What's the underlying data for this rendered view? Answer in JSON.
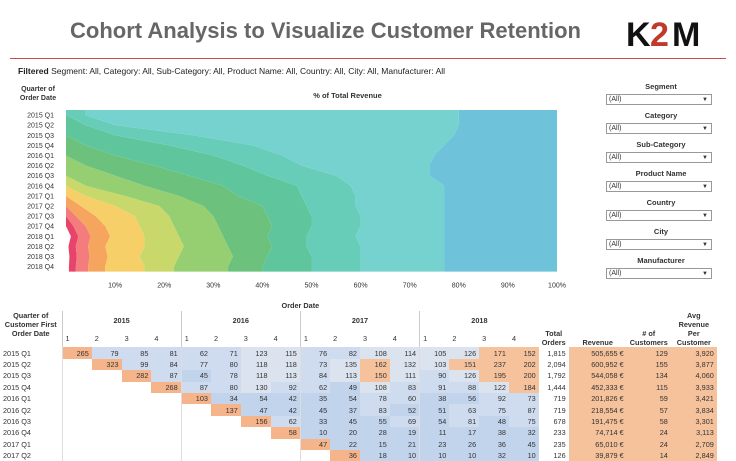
{
  "header": {
    "title": "Cohort Analysis to Visualize Customer Retention",
    "logo_text": "K2M",
    "logo_color": "#111111",
    "accent_color": "#c0392b"
  },
  "filters": {
    "prefix": "Filtered",
    "text": " Segment: All, Category: All, Sub-Category: All, Product Name: All, Country: All, City: All, Manufacturer: All"
  },
  "chart_data": {
    "type": "area",
    "title": "% of Total Revenue",
    "ylabel": "Quarter of Order Date",
    "categories": [
      "2015 Q1",
      "2015 Q2",
      "2015 Q3",
      "2015 Q4",
      "2016 Q1",
      "2016 Q2",
      "2016 Q3",
      "2016 Q4",
      "2017 Q1",
      "2017 Q2",
      "2017 Q3",
      "2017 Q4",
      "2018 Q1",
      "2018 Q2",
      "2018 Q3",
      "2018 Q4"
    ],
    "xticks": [
      "10%",
      "20%",
      "30%",
      "40%",
      "50%",
      "60%",
      "70%",
      "80%",
      "90%",
      "100%"
    ],
    "xlim": [
      0,
      100
    ],
    "grid": false,
    "series_colors": [
      "#e7436b",
      "#f47c7c",
      "#f6a55f",
      "#f7cf68",
      "#c9d86a",
      "#95cf72",
      "#6cc27c",
      "#5fc59c",
      "#67cdb9",
      "#76d2cf",
      "#6ec3da"
    ],
    "boundaries": [
      [
        0,
        0,
        0,
        0,
        0,
        0,
        0,
        0,
        0,
        0,
        0,
        0,
        1,
        0.5,
        0.7,
        0.6
      ],
      [
        0,
        0,
        0,
        0,
        0,
        0,
        0,
        0,
        0,
        0,
        0,
        1.5,
        2.5,
        2,
        2.2,
        2
      ],
      [
        0,
        0,
        0,
        0,
        0,
        0,
        0,
        0,
        0,
        0,
        2,
        4,
        5,
        4.5,
        4.8,
        4.5
      ],
      [
        0,
        0,
        0,
        0,
        0,
        0,
        0,
        0,
        0,
        3,
        6,
        8,
        9,
        8,
        8.5,
        8
      ],
      [
        0,
        0,
        0,
        0,
        0,
        0,
        0,
        0,
        4,
        10,
        14,
        15,
        16,
        16,
        15,
        16
      ],
      [
        0,
        0,
        0,
        0,
        0,
        0,
        0,
        4,
        12,
        19,
        21,
        22,
        23,
        24,
        23,
        22
      ],
      [
        0,
        0,
        0,
        0,
        0,
        4,
        10,
        16,
        23,
        28,
        30,
        31,
        32,
        33,
        34,
        33
      ],
      [
        0,
        0,
        0,
        4,
        10,
        18,
        25,
        32,
        35,
        40,
        41,
        42,
        41,
        42,
        41,
        40
      ],
      [
        0,
        4,
        10,
        21,
        30,
        36,
        41,
        47,
        48,
        49,
        50,
        50,
        49,
        49,
        50,
        50
      ],
      [
        4,
        10,
        26,
        38,
        44,
        48,
        55,
        58,
        59,
        59,
        60,
        60,
        59,
        60,
        60,
        60
      ],
      [
        80,
        80,
        79,
        77,
        75,
        74,
        74,
        77,
        77,
        77,
        77,
        77,
        77,
        77,
        77,
        77
      ],
      [
        100,
        100,
        100,
        100,
        100,
        100,
        100,
        100,
        100,
        100,
        100,
        100,
        100,
        100,
        100,
        100
      ]
    ],
    "boundaries_note_units": "cumulative percent of total revenue per quarter"
  },
  "controls": [
    {
      "label": "Segment",
      "value": "(All)"
    },
    {
      "label": "Category",
      "value": "(All)"
    },
    {
      "label": "Sub-Category",
      "value": "(All)"
    },
    {
      "label": "Product Name",
      "value": "(All)"
    },
    {
      "label": "Country",
      "value": "(All)"
    },
    {
      "label": "City",
      "value": "(All)"
    },
    {
      "label": "Manufacturer",
      "value": "(All)"
    }
  ],
  "table": {
    "order_date_header": "Order Date",
    "cohort_header": "Quarter of Customer First Order Date",
    "years": [
      "2015",
      "2016",
      "2017",
      "2018"
    ],
    "quarters": [
      "1",
      "2",
      "3",
      "4"
    ],
    "extra_headers": [
      "Total Orders",
      "Revenue",
      "# of Customers",
      "Avg Revenue Per Customer"
    ],
    "rows": [
      {
        "label": "2015 Q1",
        "cells": [
          "265",
          "79",
          "85",
          "81",
          "62",
          "71",
          "123",
          "115",
          "76",
          "82",
          "108",
          "114",
          "105",
          "126",
          "171",
          "152"
        ],
        "total": "1,815",
        "revenue": "505,655 €",
        "customers": "129",
        "avg": "3,920"
      },
      {
        "label": "2015 Q2",
        "cells": [
          "",
          "323",
          "99",
          "84",
          "77",
          "80",
          "118",
          "118",
          "73",
          "135",
          "162",
          "132",
          "103",
          "151",
          "237",
          "202"
        ],
        "total": "2,094",
        "revenue": "600,952 €",
        "customers": "155",
        "avg": "3,877"
      },
      {
        "label": "2015 Q3",
        "cells": [
          "",
          "",
          "282",
          "87",
          "45",
          "78",
          "118",
          "113",
          "84",
          "113",
          "150",
          "111",
          "90",
          "126",
          "195",
          "200"
        ],
        "total": "1,792",
        "revenue": "544,058 €",
        "customers": "134",
        "avg": "4,060"
      },
      {
        "label": "2015 Q4",
        "cells": [
          "",
          "",
          "",
          "268",
          "87",
          "80",
          "130",
          "92",
          "62",
          "49",
          "108",
          "83",
          "91",
          "88",
          "122",
          "184"
        ],
        "total": "1,444",
        "revenue": "452,333 €",
        "customers": "115",
        "avg": "3,933"
      },
      {
        "label": "2016 Q1",
        "cells": [
          "",
          "",
          "",
          "",
          "103",
          "34",
          "54",
          "42",
          "35",
          "54",
          "78",
          "60",
          "38",
          "56",
          "92",
          "73"
        ],
        "total": "719",
        "revenue": "201,826 €",
        "customers": "59",
        "avg": "3,421"
      },
      {
        "label": "2016 Q2",
        "cells": [
          "",
          "",
          "",
          "",
          "",
          "137",
          "47",
          "42",
          "45",
          "37",
          "83",
          "52",
          "51",
          "63",
          "75",
          "87"
        ],
        "total": "719",
        "revenue": "218,554 €",
        "customers": "57",
        "avg": "3,834"
      },
      {
        "label": "2016 Q3",
        "cells": [
          "",
          "",
          "",
          "",
          "",
          "",
          "156",
          "62",
          "33",
          "45",
          "55",
          "69",
          "54",
          "81",
          "48",
          "75"
        ],
        "total": "678",
        "revenue": "191,475 €",
        "customers": "58",
        "avg": "3,301"
      },
      {
        "label": "2016 Q4",
        "cells": [
          "",
          "",
          "",
          "",
          "",
          "",
          "",
          "58",
          "10",
          "20",
          "28",
          "19",
          "11",
          "17",
          "38",
          "32"
        ],
        "total": "233",
        "revenue": "74,714 €",
        "customers": "24",
        "avg": "3,113"
      },
      {
        "label": "2017 Q1",
        "cells": [
          "",
          "",
          "",
          "",
          "",
          "",
          "",
          "",
          "47",
          "22",
          "15",
          "21",
          "23",
          "26",
          "36",
          "45"
        ],
        "total": "235",
        "revenue": "65,010 €",
        "customers": "24",
        "avg": "2,709"
      },
      {
        "label": "2017 Q2",
        "cells": [
          "",
          "",
          "",
          "",
          "",
          "",
          "",
          "",
          "",
          "36",
          "18",
          "10",
          "10",
          "10",
          "32",
          "10"
        ],
        "total": "126",
        "revenue": "39,879 €",
        "customers": "14",
        "avg": "2,849"
      }
    ]
  }
}
